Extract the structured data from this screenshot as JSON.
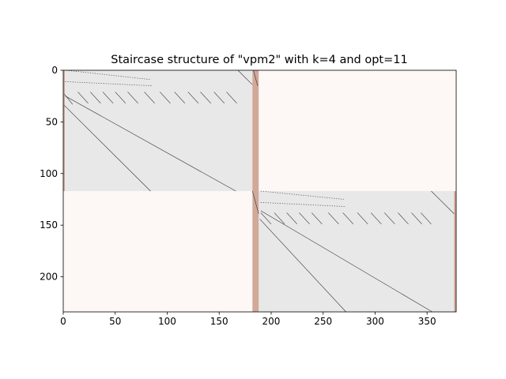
{
  "chart_data": {
    "type": "heatmap",
    "title": "Staircase structure of \"vpm2\" with k=4 and opt=11",
    "xlabel": "",
    "ylabel": "",
    "xlim": [
      0,
      378
    ],
    "ylim": [
      234,
      0
    ],
    "x_ticks": [
      0,
      50,
      100,
      150,
      200,
      250,
      300,
      350
    ],
    "y_ticks": [
      0,
      50,
      100,
      150,
      200
    ],
    "grid": false,
    "colors": {
      "block_background": "#e8e8e8",
      "off_block_background": "#fdf8f5",
      "linking_columns": "#d2a898",
      "nonzero": "#333333"
    },
    "blocks": [
      {
        "rows": [
          0,
          117
        ],
        "cols": [
          0,
          182
        ]
      },
      {
        "rows": [
          117,
          234
        ],
        "cols": [
          188,
          378
        ]
      }
    ],
    "linking_columns": [
      {
        "cols": [
          182,
          188
        ],
        "rows": [
          0,
          234
        ]
      },
      {
        "cols": [
          0,
          1.5
        ],
        "rows": [
          0,
          117
        ]
      },
      {
        "cols": [
          376,
          378
        ],
        "rows": [
          117,
          234
        ]
      }
    ],
    "diagonals": [
      {
        "from": [
          1,
          34
        ],
        "to": [
          84,
          117
        ]
      },
      {
        "from": [
          2,
          25
        ],
        "to": [
          166,
          117
        ]
      },
      {
        "from": [
          189,
          144
        ],
        "to": [
          272,
          234
        ]
      },
      {
        "from": [
          190,
          136
        ],
        "to": [
          355,
          234
        ]
      },
      {
        "from": [
          168,
          0
        ],
        "to": [
          182,
          14
        ]
      },
      {
        "from": [
          182,
          117
        ],
        "to": [
          188,
          139
        ]
      },
      {
        "from": [
          354,
          117
        ],
        "to": [
          376,
          139
        ]
      },
      {
        "from": [
          183,
          0
        ],
        "to": [
          187,
          15
        ]
      }
    ],
    "short_segments": [
      {
        "rows": [
          23,
          33
        ],
        "cols": [
          1,
          9
        ]
      },
      {
        "rows": [
          21,
          32
        ],
        "cols": [
          14,
          24
        ]
      },
      {
        "rows": [
          21,
          32
        ],
        "cols": [
          26,
          36
        ]
      },
      {
        "rows": [
          21,
          32
        ],
        "cols": [
          38,
          48
        ]
      },
      {
        "rows": [
          21,
          32
        ],
        "cols": [
          50,
          60
        ]
      },
      {
        "rows": [
          21,
          32
        ],
        "cols": [
          62,
          72
        ]
      },
      {
        "rows": [
          21,
          32
        ],
        "cols": [
          78,
          88
        ]
      },
      {
        "rows": [
          21,
          32
        ],
        "cols": [
          93,
          103
        ]
      },
      {
        "rows": [
          21,
          32
        ],
        "cols": [
          107,
          117
        ]
      },
      {
        "rows": [
          21,
          32
        ],
        "cols": [
          120,
          130
        ]
      },
      {
        "rows": [
          21,
          32
        ],
        "cols": [
          132,
          142
        ]
      },
      {
        "rows": [
          21,
          32
        ],
        "cols": [
          145,
          155
        ]
      },
      {
        "rows": [
          21,
          32
        ],
        "cols": [
          157,
          167
        ]
      },
      {
        "rows": [
          138,
          149
        ],
        "cols": [
          190,
          200
        ]
      },
      {
        "rows": [
          138,
          149
        ],
        "cols": [
          203,
          213
        ]
      },
      {
        "rows": [
          138,
          149
        ],
        "cols": [
          215,
          225
        ]
      },
      {
        "rows": [
          138,
          149
        ],
        "cols": [
          227,
          237
        ]
      },
      {
        "rows": [
          138,
          149
        ],
        "cols": [
          239,
          249
        ]
      },
      {
        "rows": [
          138,
          149
        ],
        "cols": [
          255,
          265
        ]
      },
      {
        "rows": [
          138,
          149
        ],
        "cols": [
          269,
          279
        ]
      },
      {
        "rows": [
          138,
          149
        ],
        "cols": [
          283,
          293
        ]
      },
      {
        "rows": [
          138,
          149
        ],
        "cols": [
          296,
          306
        ]
      },
      {
        "rows": [
          138,
          149
        ],
        "cols": [
          309,
          319
        ]
      },
      {
        "rows": [
          138,
          149
        ],
        "cols": [
          322,
          332
        ]
      },
      {
        "rows": [
          138,
          149
        ],
        "cols": [
          335,
          345
        ]
      },
      {
        "rows": [
          138,
          149
        ],
        "cols": [
          344,
          354
        ]
      }
    ],
    "staircase_dots": [
      {
        "rows": [
          0,
          9
        ],
        "cols": [
          3,
          84
        ]
      },
      {
        "rows": [
          11,
          15
        ],
        "cols": [
          2,
          85
        ]
      },
      {
        "rows": [
          117,
          125
        ],
        "cols": [
          190,
          270
        ]
      },
      {
        "rows": [
          128,
          132
        ],
        "cols": [
          190,
          272
        ]
      }
    ]
  }
}
